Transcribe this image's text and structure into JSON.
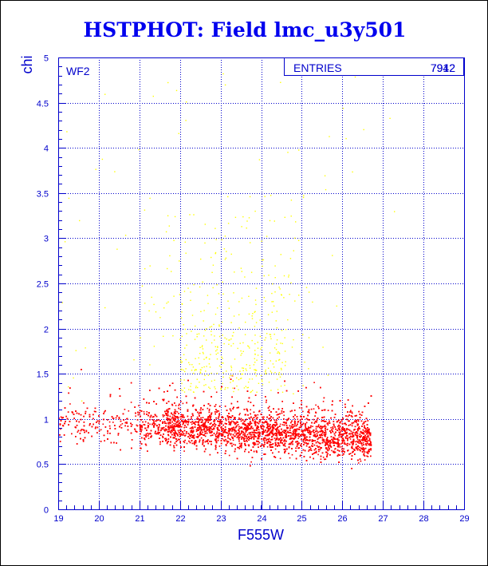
{
  "chart_data": {
    "type": "scatter",
    "title": "HSTPHOT: Field lmc_u3y501",
    "xlabel": "F555W",
    "ylabel": "chi",
    "xlim": [
      19,
      29
    ],
    "ylim": [
      0,
      5
    ],
    "xticks": [
      "19",
      "20",
      "21",
      "22",
      "23",
      "24",
      "25",
      "26",
      "27",
      "28",
      "29"
    ],
    "yticks": [
      "0",
      "0.5",
      "1",
      "1.5",
      "2",
      "2.5",
      "3",
      "3.5",
      "4",
      "4.5",
      "5"
    ],
    "grid": true,
    "panel_label": "WF2",
    "stats_box": {
      "label": "ENTRIES",
      "values": [
        "7942",
        "7912"
      ]
    },
    "series": [
      {
        "color": "#ff0000",
        "count_approx": 7400,
        "distribution": "dense band from x 19 to 26.8, chi mostly 0.6 to 1.2, rising towards x 22-24.5 up to chi ~1.6"
      },
      {
        "color": "#ffff00",
        "count_approx": 500,
        "distribution": "sparse points from x 19 to 27.3, chi 1.2 to 4.9, concentrated at x 22-24.5, chi 1.5-2.5"
      }
    ]
  },
  "colors": {
    "axis": "#0000cc",
    "title": "#0000ee",
    "red_points": "#ff0000",
    "yellow_points": "#ffff00"
  }
}
